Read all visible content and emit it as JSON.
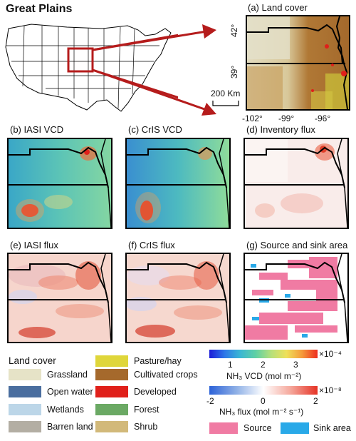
{
  "title": "Great Plains",
  "panels": {
    "a": "(a) Land cover",
    "b": "(b) IASI VCD",
    "c": "(c) CrIS VCD",
    "d": "(d) Inventory flux",
    "e": "(e) IASI flux",
    "f": "(f) CrIS flux",
    "g": "(g) Source and sink area"
  },
  "map_axes": {
    "lat_ticks": [
      "42°",
      "39°"
    ],
    "lon_ticks": [
      "-102°",
      "-99°",
      "-96°"
    ],
    "scale_bar": "200 Km"
  },
  "land_cover_legend": {
    "heading": "Land cover",
    "items": [
      {
        "label": "Grassland",
        "color": "#e6e3c7"
      },
      {
        "label": "Open water",
        "color": "#4a6e9f"
      },
      {
        "label": "Wetlands",
        "color": "#bcd6e8"
      },
      {
        "label": "Barren land",
        "color": "#b3aea3"
      },
      {
        "label": "Pasture/hay",
        "color": "#dfd63a"
      },
      {
        "label": "Cultivated crops",
        "color": "#a5692c"
      },
      {
        "label": "Developed",
        "color": "#e0201a"
      },
      {
        "label": "Forest",
        "color": "#6ba964"
      },
      {
        "label": "Shrub",
        "color": "#d2b97a"
      }
    ]
  },
  "vcd_colorbar": {
    "ticks": [
      "1",
      "2",
      "3"
    ],
    "multiplier": "×10⁻⁴",
    "label": "NH₃ VCD (mol m⁻²)"
  },
  "flux_colorbar": {
    "ticks": [
      "-2",
      "0",
      "2"
    ],
    "multiplier": "×10⁻⁸",
    "label": "NH₃ flux (mol m⁻² s⁻¹)"
  },
  "source_sink_legend": {
    "source": {
      "label": "Source",
      "color": "#f07ba3"
    },
    "sink": {
      "label": "Sink area",
      "color": "#29a9e8"
    }
  }
}
